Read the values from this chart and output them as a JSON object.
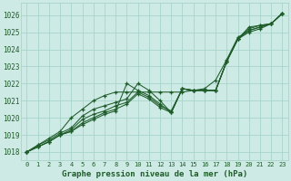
{
  "xlabel": "Graphe pression niveau de la mer (hPa)",
  "xlim_min": -0.5,
  "xlim_max": 23.5,
  "ylim_min": 1017.5,
  "ylim_max": 1026.7,
  "yticks": [
    1018,
    1019,
    1020,
    1021,
    1022,
    1023,
    1024,
    1025,
    1026
  ],
  "xticks": [
    0,
    1,
    2,
    3,
    4,
    5,
    6,
    7,
    8,
    9,
    10,
    11,
    12,
    13,
    14,
    15,
    16,
    17,
    18,
    19,
    20,
    21,
    22,
    23
  ],
  "bg_color": "#ceeae4",
  "grid_color": "#a8d4cc",
  "line_color": "#1e5c2a",
  "series": [
    [
      1018.0,
      1018.3,
      1018.6,
      1019.0,
      1019.2,
      1019.6,
      1019.9,
      1020.2,
      1020.4,
      1022.0,
      1021.6,
      1021.3,
      1020.8,
      1020.3,
      1021.7,
      1021.6,
      1021.6,
      1021.6,
      1023.3,
      1024.6,
      1025.3,
      1025.4,
      1025.5,
      1026.1
    ],
    [
      1018.0,
      1018.3,
      1018.6,
      1019.0,
      1019.2,
      1019.7,
      1020.0,
      1020.3,
      1020.5,
      1020.8,
      1021.4,
      1021.1,
      1020.6,
      1020.3,
      1021.7,
      1021.6,
      1021.6,
      1021.6,
      1023.3,
      1024.6,
      1025.2,
      1025.4,
      1025.5,
      1026.1
    ],
    [
      1018.0,
      1018.3,
      1018.6,
      1019.0,
      1019.3,
      1019.9,
      1020.2,
      1020.4,
      1020.7,
      1020.9,
      1021.5,
      1021.2,
      1020.7,
      1020.4,
      1021.7,
      1021.6,
      1021.6,
      1021.6,
      1023.3,
      1024.6,
      1025.1,
      1025.3,
      1025.5,
      1026.1
    ],
    [
      1018.0,
      1018.4,
      1018.7,
      1019.1,
      1019.4,
      1020.1,
      1020.5,
      1020.7,
      1020.9,
      1021.1,
      1022.0,
      1021.6,
      1021.0,
      1020.3,
      1021.7,
      1021.6,
      1021.6,
      1021.6,
      1023.3,
      1024.6,
      1025.0,
      1025.2,
      1025.5,
      1026.1
    ],
    [
      1018.0,
      1018.4,
      1018.8,
      1019.2,
      1020.0,
      1020.5,
      1021.0,
      1021.3,
      1021.5,
      1021.5,
      1021.5,
      1021.5,
      1021.5,
      1021.5,
      1021.5,
      1021.6,
      1021.7,
      1022.2,
      1023.4,
      1024.7,
      1025.1,
      1025.3,
      1025.5,
      1026.1
    ]
  ]
}
